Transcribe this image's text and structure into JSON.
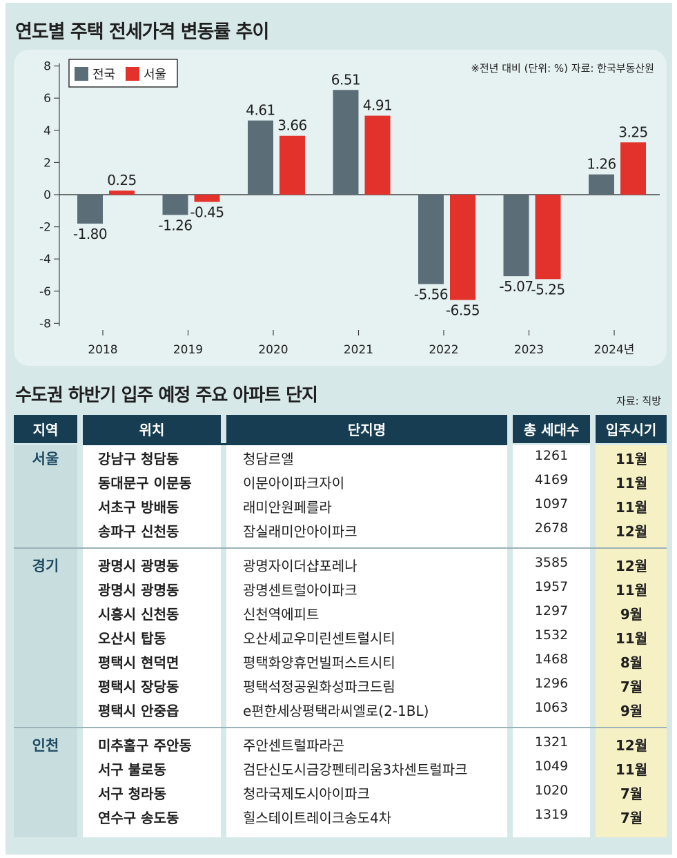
{
  "chart_title": "연도별 주택 전세가격 변동률 추이",
  "chart_note": "※전년 대비 (단위: %) 자료: 한국부동산원",
  "chart_data": {
    "type": "bar",
    "title": "연도별 주택 전세가격 변동률 추이",
    "categories": [
      "2018",
      "2019",
      "2020",
      "2021",
      "2022",
      "2023",
      "2024년"
    ],
    "series": [
      {
        "name": "전국",
        "color": "#5b6e78",
        "values": [
          -1.8,
          -1.26,
          4.61,
          6.51,
          -5.56,
          -5.07,
          1.26
        ],
        "labels": [
          "-1.80",
          "-1.26",
          "4.61",
          "6.51",
          "-5.56",
          "-5.07",
          "1.26"
        ]
      },
      {
        "name": "서울",
        "color": "#e3322b",
        "values": [
          0.25,
          -0.45,
          3.66,
          4.91,
          -6.55,
          -5.25,
          3.25
        ],
        "labels": [
          "0.25",
          "-0.45",
          "3.66",
          "4.91",
          "-6.55",
          "-5.25",
          "3.25"
        ]
      }
    ],
    "yticks": [
      8,
      6,
      4,
      2,
      0,
      -2,
      -4,
      -6,
      -8
    ],
    "ylim": [
      -8,
      8
    ],
    "legend": "top-left"
  },
  "table_title": "수도권 하반기 입주 예정 주요 아파트 단지",
  "table_source": "자료: 직방",
  "table": {
    "headers": {
      "region": "지역",
      "location": "위치",
      "name": "단지명",
      "units": "총 세대수",
      "move_in": "입주시기"
    },
    "groups": [
      {
        "region": "서울",
        "rows": [
          {
            "location": "강남구 청담동",
            "name": "청담르엘",
            "units": "1261",
            "move_in": "11월"
          },
          {
            "location": "동대문구 이문동",
            "name": "이문아이파크자이",
            "units": "4169",
            "move_in": "11월"
          },
          {
            "location": "서초구 방배동",
            "name": "래미안원페를라",
            "units": "1097",
            "move_in": "11월"
          },
          {
            "location": "송파구 신천동",
            "name": "잠실래미안아이파크",
            "units": "2678",
            "move_in": "12월"
          }
        ]
      },
      {
        "region": "경기",
        "rows": [
          {
            "location": "광명시 광명동",
            "name": "광명자이더샵포레나",
            "units": "3585",
            "move_in": "12월"
          },
          {
            "location": "광명시 광명동",
            "name": "광명센트럴아이파크",
            "units": "1957",
            "move_in": "11월"
          },
          {
            "location": "시흥시 신천동",
            "name": "신천역에피트",
            "units": "1297",
            "move_in": "9월"
          },
          {
            "location": "오산시 탑동",
            "name": "오산세교우미린센트럴시티",
            "units": "1532",
            "move_in": "11월"
          },
          {
            "location": "평택시 현덕면",
            "name": "평택화양휴먼빌퍼스트시티",
            "units": "1468",
            "move_in": "8월"
          },
          {
            "location": "평택시 장당동",
            "name": "평택석정공원화성파크드림",
            "units": "1296",
            "move_in": "7월"
          },
          {
            "location": "평택시 안중읍",
            "name": "e편한세상평택라씨엘로(2-1BL)",
            "units": "1063",
            "move_in": "9월"
          }
        ]
      },
      {
        "region": "인천",
        "rows": [
          {
            "location": "미추홀구 주안동",
            "name": "주안센트럴파라곤",
            "units": "1321",
            "move_in": "12월"
          },
          {
            "location": "서구 불로동",
            "name": "검단신도시금강펜테리움3차센트럴파크",
            "units": "1049",
            "move_in": "11월"
          },
          {
            "location": "서구 청라동",
            "name": "청라국제도시아이파크",
            "units": "1020",
            "move_in": "7월"
          },
          {
            "location": "연수구 송도동",
            "name": "힐스테이트레이크송도4차",
            "units": "1319",
            "move_in": "7월"
          }
        ]
      }
    ]
  }
}
